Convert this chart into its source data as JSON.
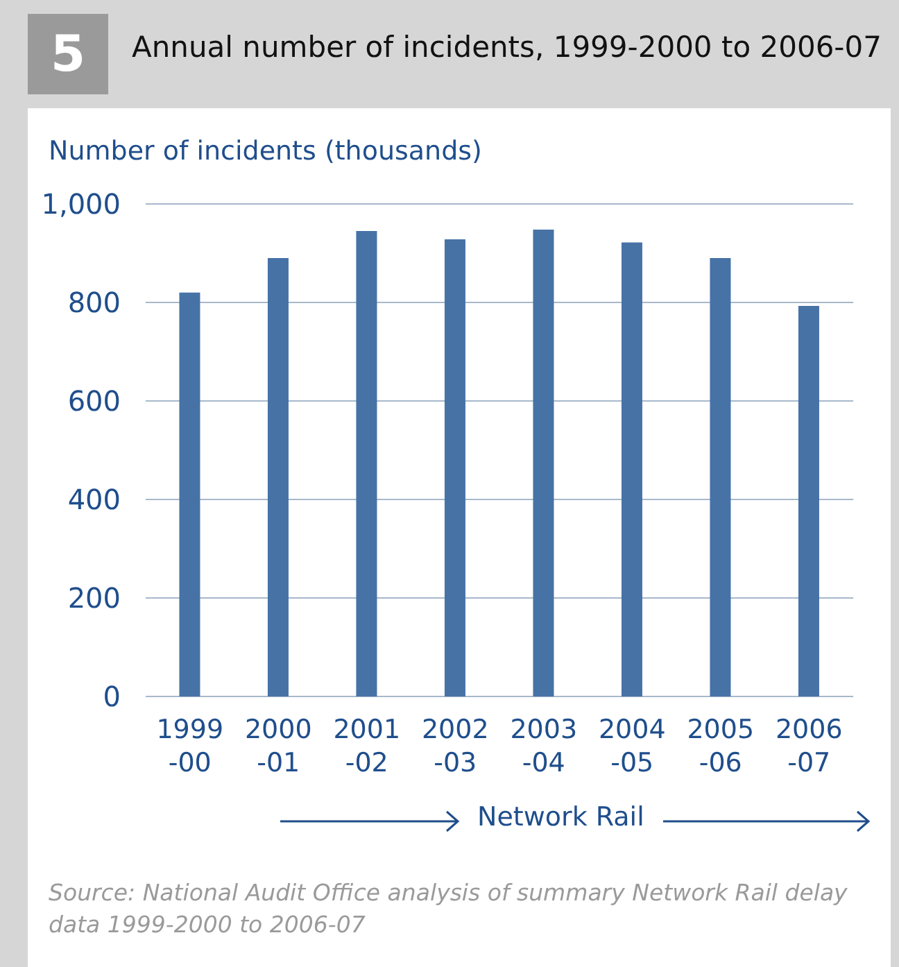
{
  "chart_data": {
    "type": "bar",
    "title": "Annual number of incidents, 1999-2000 to 2006-07",
    "ylabel": "Number of incidents (thousands)",
    "categories": [
      "1999-00",
      "2000-01",
      "2001-02",
      "2002-03",
      "2003-04",
      "2004-05",
      "2005-06",
      "2006-07"
    ],
    "values": [
      820,
      890,
      945,
      928,
      948,
      922,
      890,
      793
    ],
    "color": "#4672a6",
    "ylim": [
      0,
      1000
    ],
    "yticks": [
      0,
      200,
      400,
      600,
      800,
      {
        "value": 1000,
        "label": "1,000"
      }
    ],
    "grid": "y",
    "annotations": [
      "5",
      "Network Rail",
      "Source: National Audit Office analysis of summary Network Rail delay data 1999-2000 to 2006-07"
    ]
  }
}
